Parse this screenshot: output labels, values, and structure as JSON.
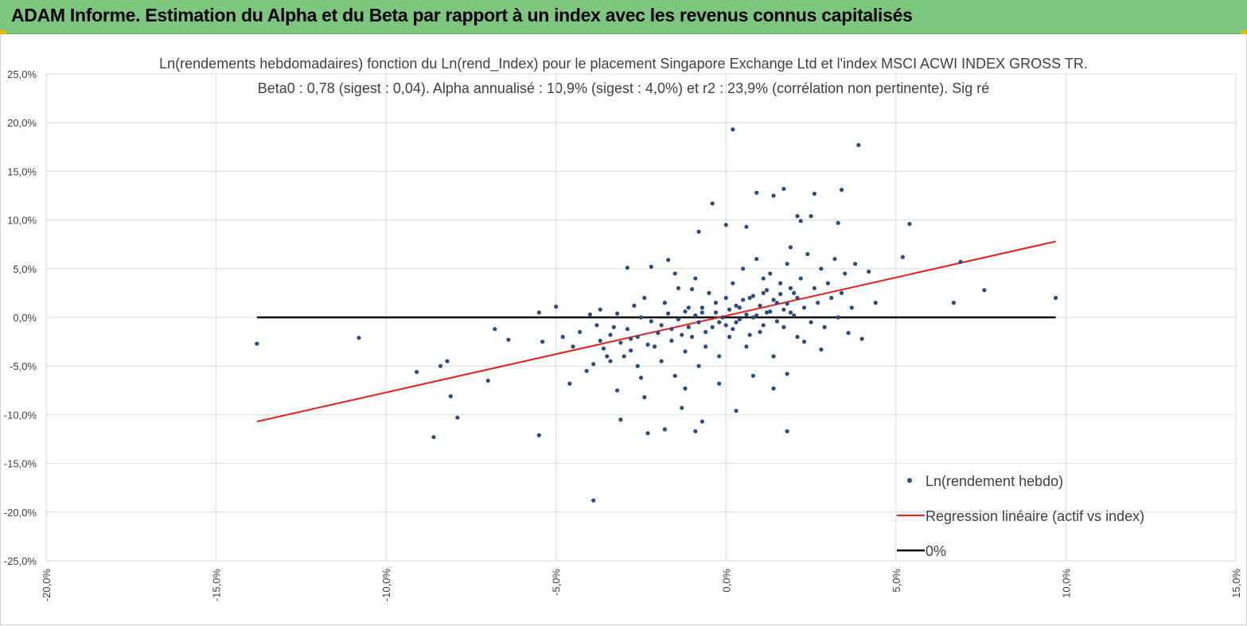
{
  "header": {
    "title": "ADAM Informe. Estimation du Alpha et du Beta par rapport à un index avec les revenus connus capitalisés"
  },
  "colors": {
    "banner": "#7dc67f",
    "points": "#2e4b7d",
    "regression": "#e8201a",
    "zero_line": "#000000",
    "grid": "#d9d9d9"
  },
  "chart_data": {
    "type": "scatter",
    "title": "Ln(rendements hebdomadaires) fonction du Ln(rend_Index) pour le placement Singapore Exchange Ltd et l'index MSCI ACWI INDEX GROSS TR.",
    "subtitle": "Beta0 : 0,78 (sigest : 0,04). Alpha annualisé : 10,9% (sigest : 4,0%) et r2 : 23,9% (corrélation non pertinente). Sig ré",
    "xlim": [
      -0.2,
      0.15
    ],
    "ylim": [
      -0.25,
      0.25
    ],
    "x_ticks": [
      -0.2,
      -0.15,
      -0.1,
      -0.05,
      0.0,
      0.05,
      0.1,
      0.15
    ],
    "y_ticks": [
      0.25,
      0.2,
      0.15,
      0.1,
      0.05,
      0.0,
      -0.05,
      -0.1,
      -0.15,
      -0.2,
      -0.25
    ],
    "x_tick_labels": [
      "-20,0%",
      "-15,0%",
      "-10,0%",
      "-5,0%",
      "0,0%",
      "5,0%",
      "10,0%",
      "15,0%"
    ],
    "y_tick_labels": [
      "25,0%",
      "20,0%",
      "15,0%",
      "10,0%",
      "5,0%",
      "0,0%",
      "-5,0%",
      "-10,0%",
      "-15,0%",
      "-20,0%",
      "-25,0%"
    ],
    "grid": "vertical and horizontal",
    "legend_position": "bottom-right",
    "series": [
      {
        "name": "Ln(rendement hebdo)",
        "kind": "scatter",
        "points": [
          [
            -0.138,
            -0.027
          ],
          [
            -0.108,
            -0.021
          ],
          [
            -0.091,
            -0.056
          ],
          [
            -0.086,
            -0.123
          ],
          [
            -0.084,
            -0.05
          ],
          [
            -0.082,
            -0.045
          ],
          [
            -0.081,
            -0.081
          ],
          [
            -0.079,
            -0.103
          ],
          [
            -0.07,
            -0.065
          ],
          [
            -0.068,
            -0.012
          ],
          [
            -0.064,
            -0.023
          ],
          [
            -0.055,
            -0.121
          ],
          [
            -0.055,
            0.005
          ],
          [
            -0.054,
            -0.025
          ],
          [
            -0.05,
            0.011
          ],
          [
            -0.048,
            -0.02
          ],
          [
            -0.046,
            -0.068
          ],
          [
            -0.04,
            0.003
          ],
          [
            -0.039,
            -0.048
          ],
          [
            -0.039,
            -0.188
          ],
          [
            -0.037,
            0.008
          ],
          [
            -0.034,
            -0.045
          ],
          [
            -0.032,
            -0.075
          ],
          [
            -0.031,
            -0.105
          ],
          [
            -0.029,
            0.051
          ],
          [
            -0.025,
            -0.062
          ],
          [
            -0.024,
            -0.082
          ],
          [
            -0.023,
            -0.119
          ],
          [
            -0.022,
            0.052
          ],
          [
            -0.018,
            -0.115
          ],
          [
            -0.017,
            0.059
          ],
          [
            -0.015,
            0.045
          ],
          [
            -0.013,
            -0.093
          ],
          [
            -0.012,
            -0.073
          ],
          [
            -0.01,
            0.029
          ],
          [
            -0.009,
            -0.117
          ],
          [
            -0.008,
            0.088
          ],
          [
            -0.007,
            -0.107
          ],
          [
            -0.004,
            0.117
          ],
          [
            -0.002,
            -0.068
          ],
          [
            0.0,
            0.095
          ],
          [
            0.002,
            0.193
          ],
          [
            0.003,
            -0.096
          ],
          [
            0.006,
            0.093
          ],
          [
            0.008,
            -0.06
          ],
          [
            0.009,
            0.128
          ],
          [
            0.011,
            0.04
          ],
          [
            0.014,
            0.125
          ],
          [
            0.014,
            -0.073
          ],
          [
            0.018,
            -0.058
          ],
          [
            0.018,
            -0.117
          ],
          [
            0.019,
            0.072
          ],
          [
            0.017,
            0.132
          ],
          [
            0.021,
            0.104
          ],
          [
            0.022,
            0.099
          ],
          [
            0.023,
            -0.025
          ],
          [
            0.025,
            0.104
          ],
          [
            0.026,
            0.127
          ],
          [
            0.028,
            -0.033
          ],
          [
            0.033,
            0.097
          ],
          [
            0.034,
            0.131
          ],
          [
            0.036,
            -0.016
          ],
          [
            0.039,
            0.177
          ],
          [
            0.04,
            -0.022
          ],
          [
            0.042,
            0.047
          ],
          [
            0.044,
            0.015
          ],
          [
            0.052,
            0.062
          ],
          [
            0.054,
            0.096
          ],
          [
            0.067,
            0.015
          ],
          [
            0.069,
            0.057
          ],
          [
            0.076,
            0.028
          ],
          [
            0.097,
            0.02
          ],
          [
            -0.045,
            -0.03
          ],
          [
            -0.043,
            -0.015
          ],
          [
            -0.041,
            -0.055
          ],
          [
            -0.036,
            -0.032
          ],
          [
            -0.033,
            -0.01
          ],
          [
            -0.03,
            -0.04
          ],
          [
            -0.028,
            -0.022
          ],
          [
            -0.027,
            0.012
          ],
          [
            -0.026,
            -0.05
          ],
          [
            -0.024,
            0.02
          ],
          [
            -0.021,
            -0.03
          ],
          [
            -0.019,
            -0.045
          ],
          [
            -0.018,
            0.015
          ],
          [
            -0.016,
            -0.012
          ],
          [
            -0.015,
            -0.06
          ],
          [
            -0.014,
            0.03
          ],
          [
            -0.012,
            -0.035
          ],
          [
            -0.011,
            0.01
          ],
          [
            -0.01,
            -0.02
          ],
          [
            -0.009,
            0.04
          ],
          [
            -0.008,
            -0.05
          ],
          [
            -0.007,
            0.005
          ],
          [
            -0.006,
            -0.03
          ],
          [
            -0.005,
            0.025
          ],
          [
            -0.004,
            -0.01
          ],
          [
            -0.003,
            0.015
          ],
          [
            -0.002,
            -0.04
          ],
          [
            -0.001,
            0.0
          ],
          [
            0.0,
            0.02
          ],
          [
            0.001,
            -0.02
          ],
          [
            0.002,
            0.035
          ],
          [
            0.003,
            -0.005
          ],
          [
            0.004,
            0.01
          ],
          [
            0.005,
            0.05
          ],
          [
            0.006,
            -0.03
          ],
          [
            0.007,
            0.02
          ],
          [
            0.008,
            0.0
          ],
          [
            0.009,
            0.06
          ],
          [
            0.01,
            -0.015
          ],
          [
            0.011,
            0.025
          ],
          [
            0.012,
            0.005
          ],
          [
            0.013,
            0.045
          ],
          [
            0.014,
            -0.04
          ],
          [
            0.015,
            0.015
          ],
          [
            0.016,
            0.035
          ],
          [
            0.017,
            -0.01
          ],
          [
            0.018,
            0.055
          ],
          [
            0.019,
            0.005
          ],
          [
            0.02,
            0.025
          ],
          [
            0.021,
            -0.02
          ],
          [
            0.022,
            0.04
          ],
          [
            0.023,
            0.01
          ],
          [
            0.024,
            0.065
          ],
          [
            0.025,
            -0.005
          ],
          [
            0.026,
            0.03
          ],
          [
            0.027,
            0.015
          ],
          [
            0.028,
            0.05
          ],
          [
            0.029,
            -0.01
          ],
          [
            0.03,
            0.035
          ],
          [
            0.031,
            0.02
          ],
          [
            0.032,
            0.06
          ],
          [
            0.033,
            0.0
          ],
          [
            0.034,
            0.025
          ],
          [
            0.035,
            0.045
          ],
          [
            0.037,
            0.01
          ],
          [
            0.038,
            0.055
          ],
          [
            -0.003,
            0.005
          ],
          [
            -0.002,
            -0.005
          ],
          [
            0.0,
            -0.008
          ],
          [
            0.001,
            0.008
          ],
          [
            0.002,
            -0.012
          ],
          [
            0.003,
            0.012
          ],
          [
            0.004,
            -0.002
          ],
          [
            0.005,
            0.018
          ],
          [
            0.006,
            0.003
          ],
          [
            0.007,
            -0.018
          ],
          [
            0.008,
            0.022
          ],
          [
            0.009,
            0.002
          ],
          [
            0.01,
            0.012
          ],
          [
            0.011,
            -0.008
          ],
          [
            0.012,
            0.028
          ],
          [
            0.013,
            0.006
          ],
          [
            0.014,
            0.018
          ],
          [
            0.015,
            -0.004
          ],
          [
            0.016,
            0.024
          ],
          [
            0.017,
            0.008
          ],
          [
            0.018,
            0.014
          ],
          [
            0.019,
            0.03
          ],
          [
            0.02,
            0.002
          ],
          [
            0.021,
            0.02
          ],
          [
            -0.006,
            -0.015
          ],
          [
            -0.007,
            0.01
          ],
          [
            -0.008,
            -0.005
          ],
          [
            -0.009,
            0.002
          ],
          [
            -0.011,
            -0.01
          ],
          [
            -0.012,
            0.006
          ],
          [
            -0.013,
            -0.018
          ],
          [
            -0.014,
            -0.002
          ],
          [
            -0.016,
            -0.024
          ],
          [
            -0.017,
            0.004
          ],
          [
            -0.019,
            -0.008
          ],
          [
            -0.02,
            -0.016
          ],
          [
            -0.022,
            -0.004
          ],
          [
            -0.023,
            -0.028
          ],
          [
            -0.025,
            0.0
          ],
          [
            -0.026,
            -0.02
          ],
          [
            -0.028,
            -0.034
          ],
          [
            -0.029,
            -0.012
          ],
          [
            -0.031,
            -0.026
          ],
          [
            -0.032,
            0.004
          ],
          [
            -0.034,
            -0.018
          ],
          [
            -0.035,
            -0.04
          ],
          [
            -0.037,
            -0.024
          ],
          [
            -0.038,
            -0.008
          ]
        ]
      },
      {
        "name": "Regression linéaire (actif vs index)",
        "kind": "line",
        "x": [
          -0.138,
          0.097
        ],
        "y": [
          -0.107,
          0.078
        ]
      },
      {
        "name": "0%",
        "kind": "line",
        "x": [
          -0.138,
          0.097
        ],
        "y": [
          0.0,
          0.0
        ]
      }
    ]
  }
}
